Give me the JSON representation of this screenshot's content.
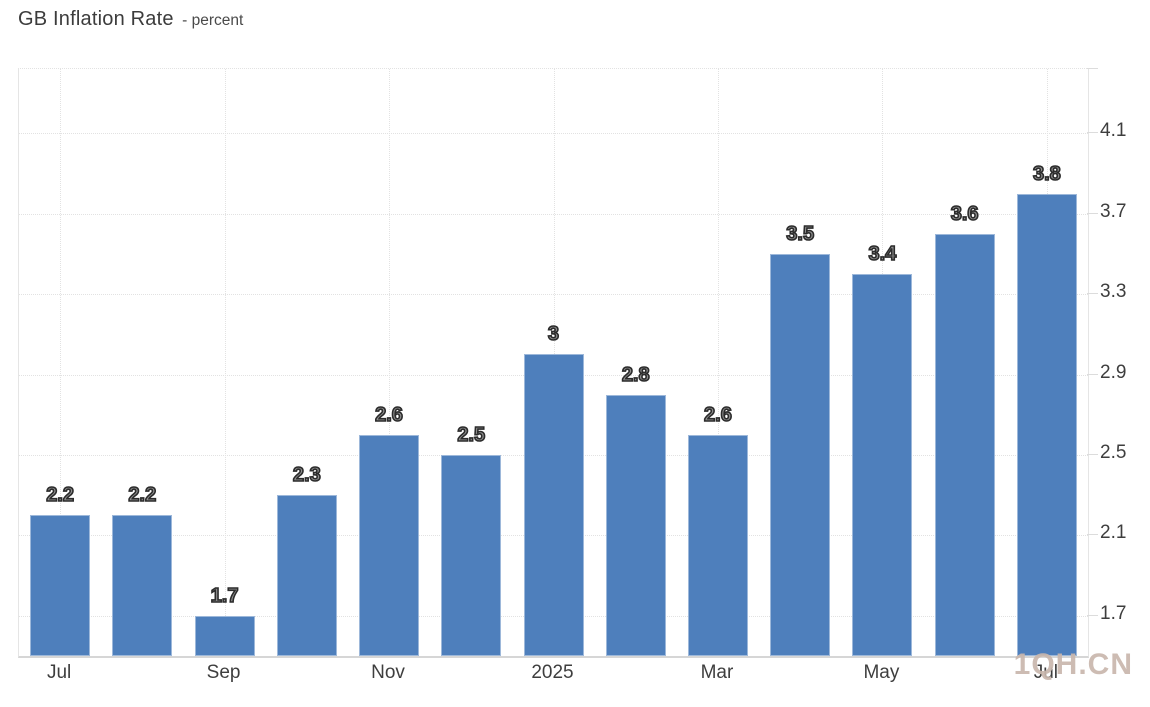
{
  "header": {
    "title": "GB Inflation Rate",
    "subtitle": "- percent"
  },
  "chart_data": {
    "type": "bar",
    "title": "GB Inflation Rate",
    "unit": "percent",
    "values": [
      2.2,
      2.2,
      1.7,
      2.3,
      2.6,
      2.5,
      3,
      2.8,
      2.6,
      3.5,
      3.4,
      3.6,
      3.8
    ],
    "data_labels": [
      "2.2",
      "2.2",
      "1.7",
      "2.3",
      "2.6",
      "2.5",
      "3",
      "2.8",
      "2.6",
      "3.5",
      "3.4",
      "3.6",
      "3.8"
    ],
    "x_ticks": [
      {
        "index": 0,
        "label": "Jul"
      },
      {
        "index": 2,
        "label": "Sep"
      },
      {
        "index": 4,
        "label": "Nov"
      },
      {
        "index": 6,
        "label": "2025"
      },
      {
        "index": 8,
        "label": "Mar"
      },
      {
        "index": 10,
        "label": "May"
      },
      {
        "index": 12,
        "label": "Jul"
      }
    ],
    "y_ticks": [
      {
        "value": 4.1,
        "label": "4.1"
      },
      {
        "value": 3.7,
        "label": "3.7"
      },
      {
        "value": 3.3,
        "label": "3.3"
      },
      {
        "value": 2.9,
        "label": "2.9"
      },
      {
        "value": 2.5,
        "label": "2.5"
      },
      {
        "value": 2.1,
        "label": "2.1"
      },
      {
        "value": 1.7,
        "label": "1.7"
      }
    ],
    "ylim": [
      1.5,
      4.42
    ],
    "grid": true,
    "legend": "none",
    "colors": {
      "bar": "#4e7fbc",
      "grid": "#e2e2e2",
      "axis_line": "#d6d6d6",
      "tick": "#dcdcdc",
      "axis_text": "#3e3e3e",
      "data_label_fill": "#909090",
      "data_label_outline": "#2b2b2b",
      "watermark": "#c9b7ad"
    },
    "watermark": "1QH.CN"
  }
}
